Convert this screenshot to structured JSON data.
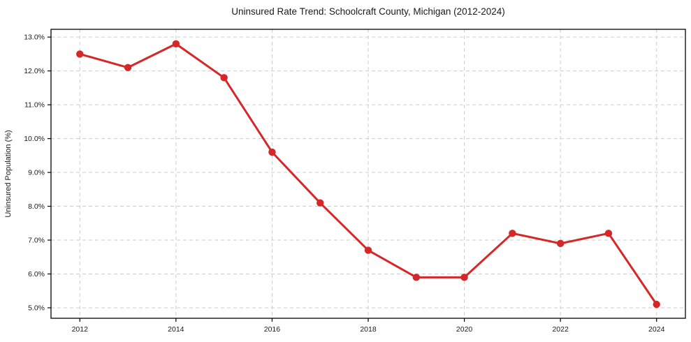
{
  "chart_data": {
    "type": "line",
    "title": "Uninsured Rate Trend: Schoolcraft County, Michigan (2012-2024)",
    "xlabel": "",
    "ylabel": "Uninsured Population (%)",
    "x": [
      2012,
      2013,
      2014,
      2015,
      2016,
      2017,
      2018,
      2019,
      2020,
      2021,
      2022,
      2023,
      2024
    ],
    "values": [
      12.5,
      12.1,
      12.8,
      11.8,
      9.6,
      8.1,
      6.7,
      5.9,
      5.9,
      7.2,
      6.9,
      7.2,
      5.1
    ],
    "xticks": [
      2012,
      2014,
      2016,
      2018,
      2020,
      2022,
      2024
    ],
    "yticks": [
      5,
      6,
      7,
      8,
      9,
      10,
      11,
      12,
      13
    ],
    "ytick_labels": [
      "5.0%",
      "6.0%",
      "7.0%",
      "8.0%",
      "9.0%",
      "10.0%",
      "11.0%",
      "12.0%",
      "13.0%"
    ],
    "xlim": [
      2011.4,
      2024.6
    ],
    "ylim": [
      4.69,
      13.23
    ],
    "grid": true,
    "grid_style": "dashed",
    "legend": false,
    "line_color": "#d62728",
    "marker_color": "#d62728",
    "grid_color": "#cccccc",
    "spine_color": "#000000",
    "background": "#ffffff"
  }
}
